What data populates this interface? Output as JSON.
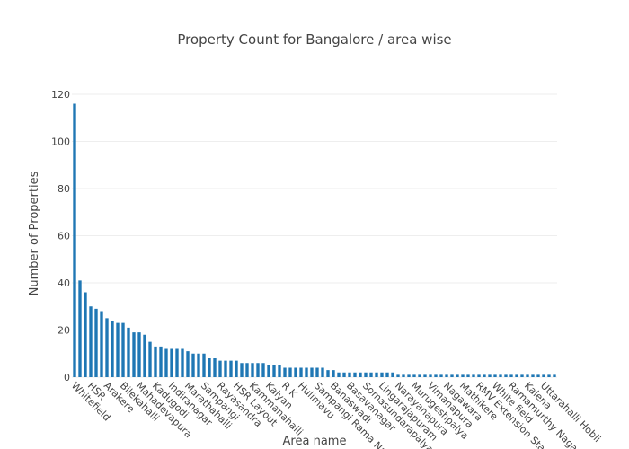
{
  "chart_data": {
    "type": "bar",
    "title": "Property Count for Bangalore / area wise",
    "x_label": "Area name",
    "y_label": "Number of Properties",
    "color": "#1f77b4",
    "grid": true,
    "ylim": [
      0,
      120
    ],
    "yticks": [
      0,
      20,
      40,
      60,
      80,
      100,
      120
    ],
    "categories": [
      "Whitefield",
      null,
      null,
      "HSR",
      null,
      null,
      "Arakere",
      null,
      null,
      "Bilekahalli",
      null,
      null,
      "Mahadevapura",
      null,
      null,
      "Kadugodi",
      null,
      null,
      "Indiranagar",
      null,
      null,
      "Marathahalli",
      null,
      null,
      "Sampangi",
      null,
      null,
      "Rayasandra",
      null,
      null,
      "HSR Layout",
      null,
      null,
      "Kammanahalli",
      null,
      null,
      "Kalyan",
      null,
      null,
      "R K",
      null,
      null,
      "Hulimavu",
      null,
      null,
      "Sampangi Rama Nagar",
      null,
      null,
      "Banaswadi",
      null,
      null,
      "Basavanagar",
      null,
      null,
      "Somasundarapalya",
      null,
      null,
      "Lingarajapuram",
      null,
      null,
      "Narayanapura",
      null,
      null,
      "Murugeshpalya",
      null,
      null,
      "Vimanapura",
      null,
      null,
      "Nagawara",
      null,
      null,
      "Mathikere",
      null,
      null,
      "RMV Extension Stage",
      null,
      null,
      "White field",
      null,
      null,
      "Ramamurthy Nagar",
      null,
      null,
      "Kalena",
      null,
      null,
      "Uttarahalli Hobli",
      null,
      null
    ],
    "values": [
      116,
      41,
      36,
      30,
      29,
      28,
      25,
      24,
      23,
      23,
      21,
      19,
      19,
      18,
      15,
      13,
      13,
      12,
      12,
      12,
      12,
      11,
      10,
      10,
      10,
      8,
      8,
      7,
      7,
      7,
      7,
      6,
      6,
      6,
      6,
      6,
      5,
      5,
      5,
      4,
      4,
      4,
      4,
      4,
      4,
      4,
      4,
      3,
      3,
      2,
      2,
      2,
      2,
      2,
      2,
      2,
      2,
      2,
      2,
      2,
      1,
      1,
      1,
      1,
      1,
      1,
      1,
      1,
      1,
      1,
      1,
      1,
      1,
      1,
      1,
      1,
      1,
      1,
      1,
      1,
      1,
      1,
      1,
      1,
      1,
      1,
      1,
      1,
      1,
      1
    ]
  }
}
